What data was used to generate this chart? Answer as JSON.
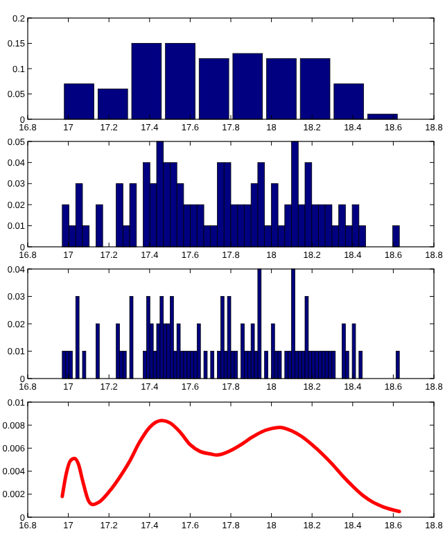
{
  "chart_data": [
    {
      "type": "histogram",
      "bins": [
        16.97,
        17.136,
        17.302,
        17.468,
        17.634,
        17.8,
        17.966,
        18.132,
        18.298,
        18.464,
        18.63
      ],
      "values": [
        0.07,
        0.06,
        0.15,
        0.15,
        0.12,
        0.13,
        0.12,
        0.12,
        0.07,
        0.01
      ],
      "color": "#000080",
      "xlim": [
        16.8,
        18.8
      ],
      "xticks": [
        16.8,
        17,
        17.2,
        17.4,
        17.6,
        17.8,
        18,
        18.2,
        18.4,
        18.6,
        18.8
      ],
      "ylim": [
        0,
        0.2
      ],
      "yticks": [
        0,
        0.05,
        0.1,
        0.15,
        0.2
      ],
      "grid": false
    },
    {
      "type": "histogram",
      "bins": [
        16.97,
        17.0032,
        17.0364,
        17.0696,
        17.1028,
        17.136,
        17.1692,
        17.2024,
        17.2356,
        17.2688,
        17.302,
        17.3352,
        17.3684,
        17.4016,
        17.4348,
        17.468,
        17.5012,
        17.5344,
        17.5676,
        17.6008,
        17.634,
        17.6672,
        17.7004,
        17.7336,
        17.7668,
        17.8,
        17.8332,
        17.8664,
        17.8996,
        17.9328,
        17.966,
        17.9992,
        18.0324,
        18.0656,
        18.0988,
        18.132,
        18.1652,
        18.1984,
        18.2316,
        18.2648,
        18.298,
        18.3312,
        18.3644,
        18.3976,
        18.4308,
        18.464,
        18.4972,
        18.5304,
        18.5636,
        18.5968,
        18.63
      ],
      "values": [
        0.02,
        0.01,
        0.03,
        0.01,
        0,
        0.02,
        0,
        0,
        0.03,
        0.01,
        0.03,
        0,
        0.04,
        0.03,
        0.05,
        0.04,
        0.04,
        0.03,
        0.02,
        0.02,
        0.02,
        0.01,
        0.01,
        0.04,
        0.04,
        0.02,
        0.02,
        0.02,
        0.03,
        0.04,
        0.01,
        0.03,
        0.01,
        0.02,
        0.05,
        0.02,
        0.04,
        0.02,
        0.02,
        0.02,
        0.01,
        0.02,
        0.01,
        0.02,
        0.01,
        0,
        0,
        0,
        0,
        0.01
      ],
      "color": "#000080",
      "xlim": [
        16.8,
        18.8
      ],
      "xticks": [
        16.8,
        17,
        17.2,
        17.4,
        17.6,
        17.8,
        18,
        18.2,
        18.4,
        18.6,
        18.8
      ],
      "ylim": [
        0,
        0.05
      ],
      "yticks": [
        0,
        0.01,
        0.02,
        0.03,
        0.04,
        0.05
      ],
      "grid": false
    },
    {
      "type": "histogram",
      "bins": [
        16.97,
        16.9866,
        17.0032,
        17.0198,
        17.0364,
        17.053,
        17.0696,
        17.0862,
        17.1028,
        17.1194,
        17.136,
        17.1526,
        17.1692,
        17.1858,
        17.2024,
        17.219,
        17.2356,
        17.2522,
        17.2688,
        17.2854,
        17.302,
        17.3186,
        17.3352,
        17.3518,
        17.3684,
        17.385,
        17.4016,
        17.4182,
        17.4348,
        17.4514,
        17.468,
        17.4846,
        17.5012,
        17.5178,
        17.5344,
        17.551,
        17.5676,
        17.5842,
        17.6008,
        17.6174,
        17.634,
        17.6506,
        17.6672,
        17.6838,
        17.7004,
        17.717,
        17.7336,
        17.7502,
        17.7668,
        17.7834,
        17.8,
        17.8166,
        17.8332,
        17.8498,
        17.8664,
        17.883,
        17.8996,
        17.9162,
        17.9328,
        17.9494,
        17.966,
        17.9826,
        17.9992,
        18.0158,
        18.0324,
        18.049,
        18.0656,
        18.0822,
        18.0988,
        18.1154,
        18.132,
        18.1486,
        18.1652,
        18.1818,
        18.1984,
        18.215,
        18.2316,
        18.2482,
        18.2648,
        18.2814,
        18.298,
        18.3146,
        18.3312,
        18.3478,
        18.3644,
        18.381,
        18.3976,
        18.4142,
        18.4308,
        18.4474,
        18.464,
        18.4806,
        18.4972,
        18.5138,
        18.5304,
        18.547,
        18.5636,
        18.5802,
        18.5968,
        18.6134,
        18.63
      ],
      "values": [
        0.01,
        0.01,
        0.01,
        0,
        0.03,
        0,
        0.01,
        0,
        0,
        0,
        0.02,
        0,
        0,
        0,
        0,
        0,
        0.02,
        0.01,
        0.01,
        0,
        0.03,
        0,
        0,
        0,
        0.01,
        0.03,
        0.02,
        0.01,
        0.02,
        0.03,
        0.02,
        0.02,
        0.03,
        0.01,
        0.02,
        0.01,
        0.01,
        0.01,
        0.01,
        0.01,
        0.02,
        0,
        0.01,
        0,
        0.01,
        0,
        0.01,
        0.03,
        0.01,
        0.03,
        0.01,
        0.01,
        0,
        0.02,
        0.01,
        0.01,
        0.02,
        0.01,
        0.04,
        0,
        0.01,
        0,
        0.02,
        0.01,
        0.01,
        0,
        0.01,
        0.01,
        0.04,
        0.01,
        0.01,
        0.01,
        0.03,
        0.01,
        0.01,
        0.01,
        0.01,
        0.01,
        0.01,
        0.01,
        0.01,
        0,
        0,
        0.02,
        0.01,
        0,
        0.02,
        0,
        0.01,
        0,
        0,
        0,
        0,
        0,
        0,
        0,
        0,
        0,
        0,
        0.01
      ],
      "color": "#000080",
      "xlim": [
        16.8,
        18.8
      ],
      "xticks": [
        16.8,
        17,
        17.2,
        17.4,
        17.6,
        17.8,
        18,
        18.2,
        18.4,
        18.6,
        18.8
      ],
      "ylim": [
        0,
        0.04
      ],
      "yticks": [
        0,
        0.01,
        0.02,
        0.03,
        0.04
      ],
      "grid": false
    },
    {
      "type": "line",
      "x": [
        16.97,
        16.99,
        17.01,
        17.03,
        17.05,
        17.07,
        17.1,
        17.12,
        17.15,
        17.2,
        17.25,
        17.3,
        17.35,
        17.4,
        17.46,
        17.5,
        17.55,
        17.6,
        17.65,
        17.7,
        17.73,
        17.8,
        17.85,
        17.9,
        17.95,
        18.0,
        18.04,
        18.1,
        18.15,
        18.2,
        18.25,
        18.3,
        18.35,
        18.4,
        18.45,
        18.5,
        18.55,
        18.63
      ],
      "values": [
        0.0018,
        0.0038,
        0.0049,
        0.0051,
        0.0046,
        0.0032,
        0.0014,
        0.0011,
        0.0013,
        0.0022,
        0.0034,
        0.0048,
        0.0065,
        0.0078,
        0.0084,
        0.0082,
        0.0074,
        0.0063,
        0.0057,
        0.0055,
        0.0054,
        0.0058,
        0.0063,
        0.0069,
        0.0074,
        0.0077,
        0.0078,
        0.0075,
        0.007,
        0.0063,
        0.0055,
        0.0046,
        0.0036,
        0.0027,
        0.0019,
        0.0013,
        0.0009,
        0.0005
      ],
      "color": "#ff0000",
      "marker": "none",
      "line_style": "solid",
      "xlim": [
        16.8,
        18.8
      ],
      "xticks": [
        16.8,
        17,
        17.2,
        17.4,
        17.6,
        17.8,
        18,
        18.2,
        18.4,
        18.6,
        18.8
      ],
      "ylim": [
        0,
        0.01
      ],
      "yticks": [
        0,
        0.002,
        0.004,
        0.006,
        0.008,
        0.01
      ],
      "grid": false
    }
  ]
}
